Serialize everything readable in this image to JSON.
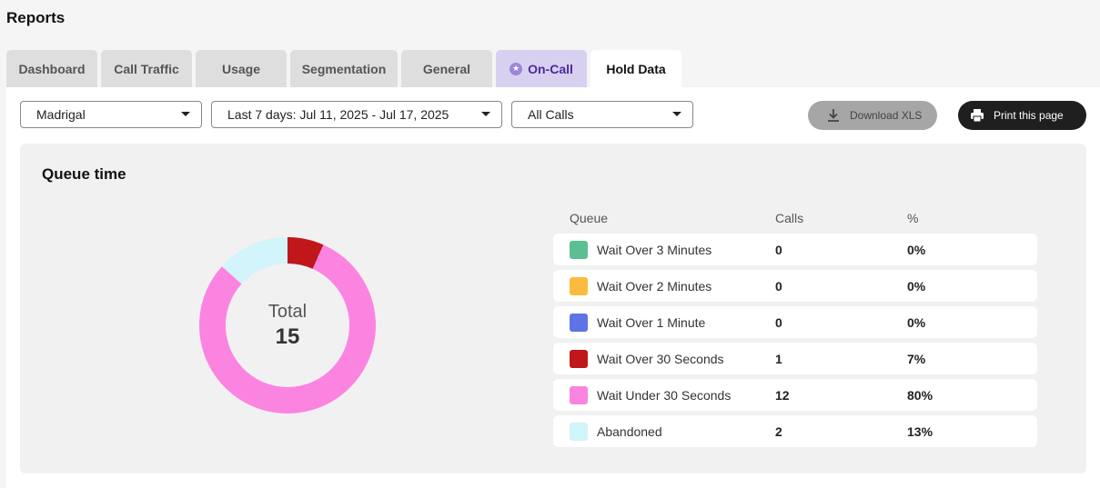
{
  "page": {
    "title": "Reports"
  },
  "tabs": [
    {
      "label": "Dashboard"
    },
    {
      "label": "Call Traffic"
    },
    {
      "label": "Usage"
    },
    {
      "label": "Segmentation"
    },
    {
      "label": "General"
    },
    {
      "label": "On-Call"
    },
    {
      "label": "Hold Data"
    }
  ],
  "filters": {
    "location": "Madrigal",
    "date_range": "Last 7 days: Jul 11, 2025 - Jul 17, 2025",
    "call_type": "All Calls"
  },
  "actions": {
    "download": "Download XLS",
    "print": "Print this page"
  },
  "queue_card": {
    "title": "Queue time",
    "total_label": "Total",
    "total_value": "15",
    "headers": {
      "queue": "Queue",
      "calls": "Calls",
      "pct": "%"
    },
    "rows": [
      {
        "name": "Wait Over 3 Minutes",
        "calls": "0",
        "pct": "0%",
        "color": "#5cbf94"
      },
      {
        "name": "Wait Over 2 Minutes",
        "calls": "0",
        "pct": "0%",
        "color": "#fbbb3e"
      },
      {
        "name": "Wait Over 1 Minute",
        "calls": "0",
        "pct": "0%",
        "color": "#5e74e4"
      },
      {
        "name": "Wait Over 30 Seconds",
        "calls": "1",
        "pct": "7%",
        "color": "#c0171a"
      },
      {
        "name": "Wait Under 30 Seconds",
        "calls": "12",
        "pct": "80%",
        "color": "#fb84e1"
      },
      {
        "name": "Abandoned",
        "calls": "2",
        "pct": "13%",
        "color": "#d2f4fb"
      }
    ]
  },
  "chart_data": {
    "type": "pie",
    "categories": [
      "Wait Over 3 Minutes",
      "Wait Over 2 Minutes",
      "Wait Over 1 Minute",
      "Wait Over 30 Seconds",
      "Wait Under 30 Seconds",
      "Abandoned"
    ],
    "values": [
      0,
      0,
      0,
      1,
      12,
      2
    ],
    "colors": [
      "#5cbf94",
      "#fbbb3e",
      "#5e74e4",
      "#c0171a",
      "#fb84e1",
      "#d2f4fb"
    ],
    "donut": true
  },
  "icons": {
    "oncall": "star-icon",
    "download": "download-icon",
    "print": "printer-icon",
    "dropdown": "caret-down-icon"
  }
}
